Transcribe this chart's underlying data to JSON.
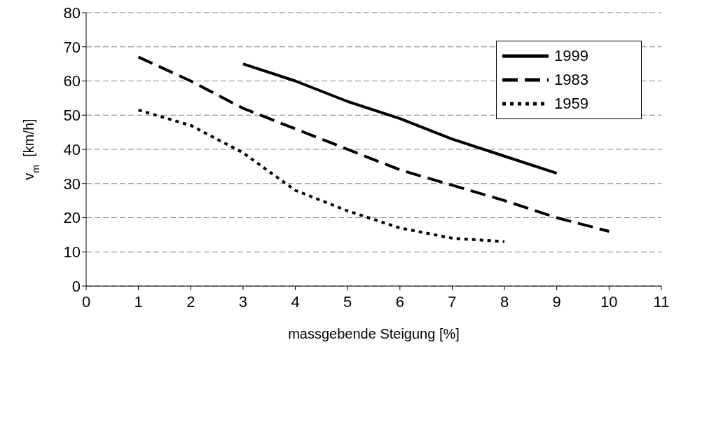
{
  "chart_data": {
    "type": "line",
    "xlabel": "massgebende Steigung [%]",
    "ylabel": "v$_{m}$  [km/h]",
    "xlim": [
      0,
      11
    ],
    "xticks": [
      0,
      1,
      2,
      3,
      4,
      5,
      6,
      7,
      8,
      9,
      10,
      11
    ],
    "ylim": [
      0,
      80
    ],
    "yticks": [
      0,
      10,
      20,
      30,
      40,
      50,
      60,
      70,
      80
    ],
    "grid": "y",
    "legend": "top right",
    "marker": "none",
    "series": [
      {
        "name": "1999",
        "color": "#000000",
        "line_style": "solid",
        "x": [
          3,
          4,
          5,
          6,
          7,
          8,
          9
        ],
        "values": [
          65,
          60,
          54,
          49,
          43,
          38,
          33
        ]
      },
      {
        "name": "1983",
        "color": "#000000",
        "line_style": "dashed",
        "x": [
          1,
          2,
          3,
          4,
          5,
          6,
          7,
          8,
          9,
          10
        ],
        "values": [
          67,
          60,
          52,
          46,
          40,
          34,
          29.5,
          25,
          20,
          16
        ]
      },
      {
        "name": "1959",
        "color": "#000000",
        "line_style": "dotted",
        "x": [
          1,
          2,
          3,
          4,
          5,
          6,
          7,
          8
        ],
        "values": [
          51.5,
          47,
          39,
          28,
          22,
          17,
          14,
          13
        ]
      }
    ]
  }
}
